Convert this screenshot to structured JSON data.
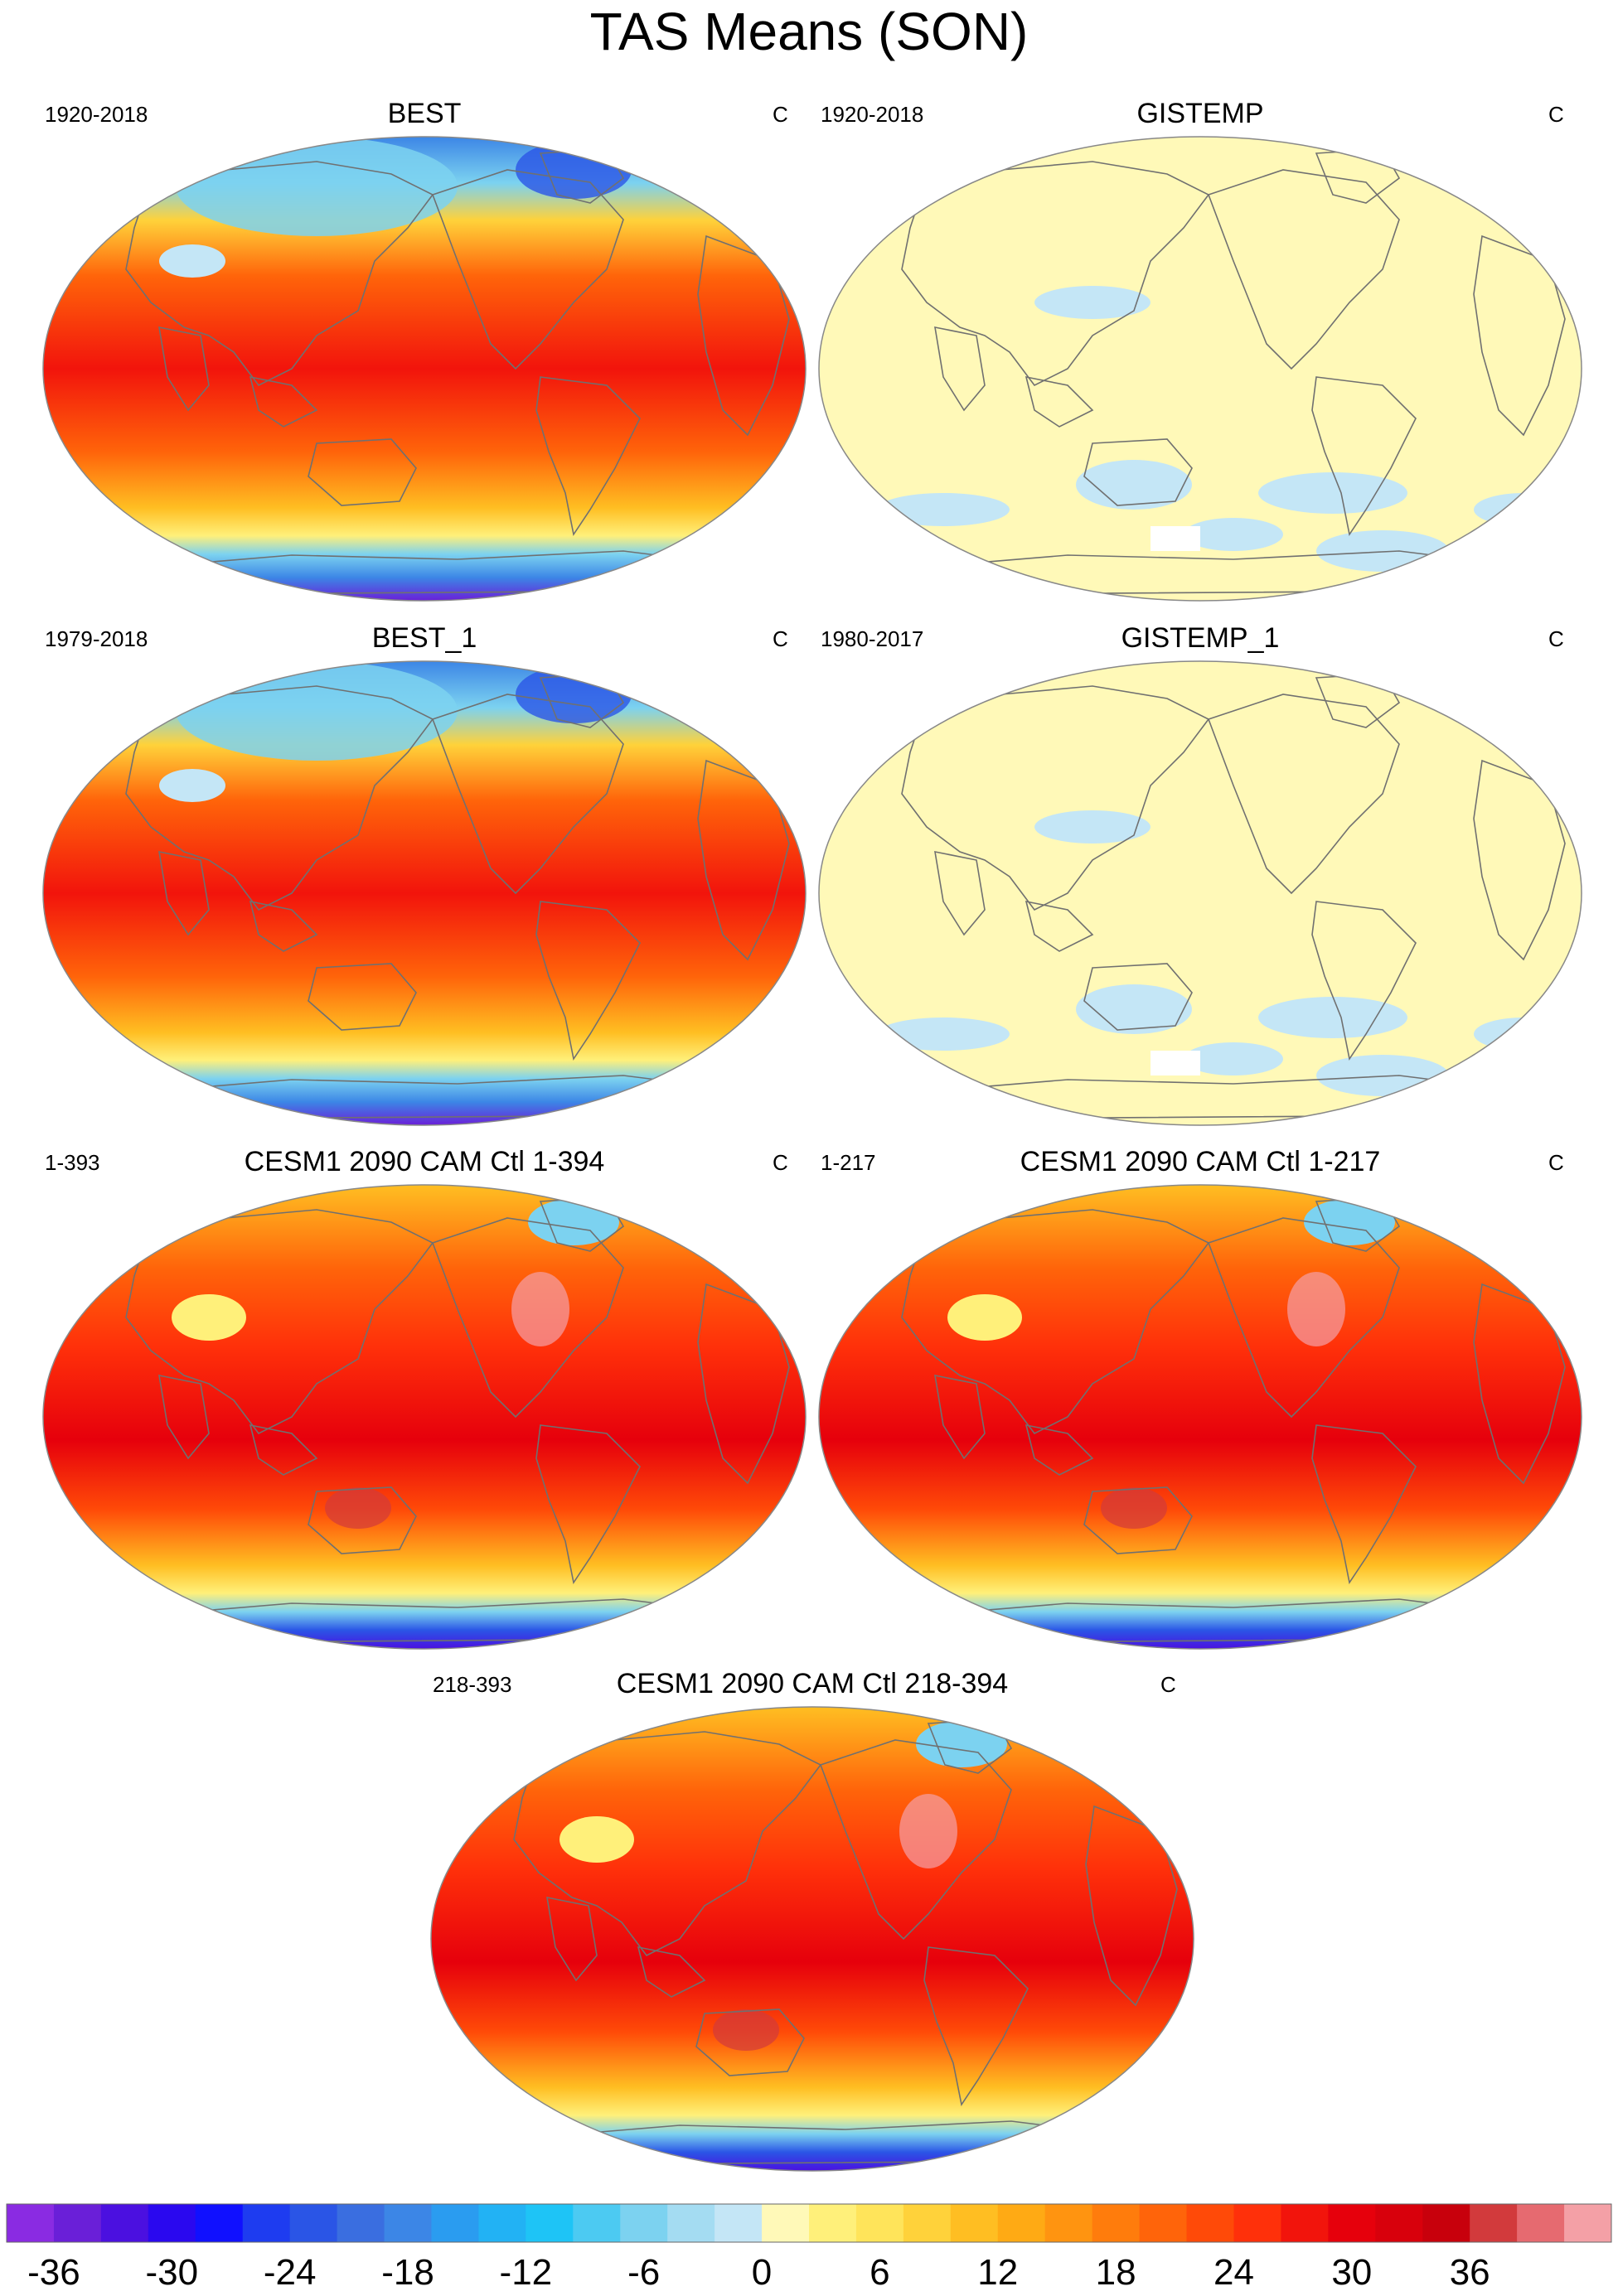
{
  "title": "TAS Means (SON)",
  "panels": [
    {
      "title": "BEST",
      "period": "1920-2018",
      "units": "C",
      "style": "best"
    },
    {
      "title": "GISTEMP",
      "period": "1920-2018",
      "units": "C",
      "style": "gis"
    },
    {
      "title": "BEST_1",
      "period": "1979-2018",
      "units": "C",
      "style": "best"
    },
    {
      "title": "GISTEMP_1",
      "period": "1980-2017",
      "units": "C",
      "style": "gis"
    },
    {
      "title": "CESM1 2090 CAM Ctl 1-394",
      "period": "1-393",
      "units": "C",
      "style": "cesm"
    },
    {
      "title": "CESM1 2090 CAM Ctl 1-217",
      "period": "1-217",
      "units": "C",
      "style": "cesm"
    },
    {
      "title": "CESM1 2090 CAM Ctl 218-394",
      "period": "218-393",
      "units": "C",
      "style": "cesm"
    }
  ],
  "colorbar": {
    "tick_labels": [
      "-36",
      "-30",
      "-24",
      "-18",
      "-12",
      "-6",
      "0",
      "6",
      "12",
      "18",
      "24",
      "30",
      "36"
    ],
    "colors": [
      "#8a2be2",
      "#6a1fd8",
      "#4b10e0",
      "#2a08ef",
      "#1010ff",
      "#1e3cf0",
      "#2a55e6",
      "#3a6ee0",
      "#3c86e6",
      "#2a9cf0",
      "#22b2f4",
      "#1ec4f6",
      "#4ccaf2",
      "#7cd2f0",
      "#a4dcf2",
      "#c4e6f6",
      "#fff9b8",
      "#fff07a",
      "#ffe45a",
      "#ffd23a",
      "#ffbe22",
      "#ffaa14",
      "#ff9410",
      "#ff7c0c",
      "#ff640a",
      "#ff4a08",
      "#ff300a",
      "#f2140c",
      "#e6000c",
      "#d8000c",
      "#c8000c",
      "#d23a3c",
      "#e66a70",
      "#f4a0a6"
    ],
    "levels": [
      -36,
      36
    ]
  }
}
